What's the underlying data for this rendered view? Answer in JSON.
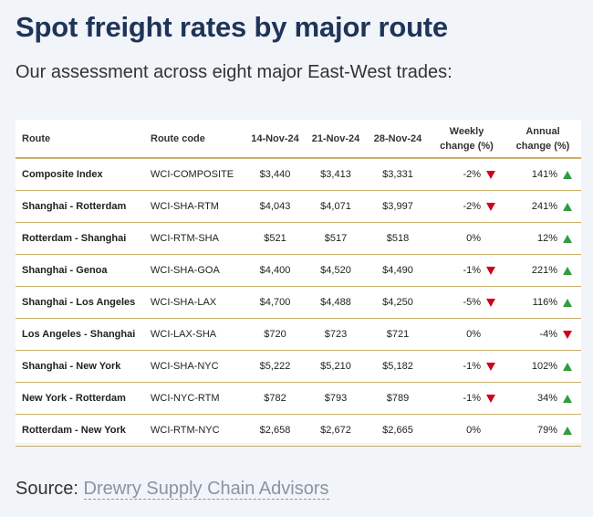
{
  "header": {
    "title": "Spot freight rates by major route",
    "subtitle": "Our assessment across eight major East-West trades:"
  },
  "table": {
    "columns": {
      "route": "Route",
      "code": "Route code",
      "d1": "14-Nov-24",
      "d2": "21-Nov-24",
      "d3": "28-Nov-24",
      "weekly_1": "Weekly",
      "weekly_2": "change (%)",
      "annual_1": "Annual",
      "annual_2": "change (%)"
    },
    "rows": [
      {
        "route": "Composite Index",
        "code": "WCI-COMPOSITE",
        "d1": "$3,440",
        "d2": "$3,413",
        "d3": "$3,331",
        "weekly": "-2%",
        "weekly_dir": "down",
        "annual": "141%",
        "annual_dir": "up"
      },
      {
        "route": "Shanghai - Rotterdam",
        "code": "WCI-SHA-RTM",
        "d1": "$4,043",
        "d2": "$4,071",
        "d3": "$3,997",
        "weekly": "-2%",
        "weekly_dir": "down",
        "annual": "241%",
        "annual_dir": "up"
      },
      {
        "route": "Rotterdam - Shanghai",
        "code": "WCI-RTM-SHA",
        "d1": "$521",
        "d2": "$517",
        "d3": "$518",
        "weekly": "0%",
        "weekly_dir": "none",
        "annual": "12%",
        "annual_dir": "up"
      },
      {
        "route": "Shanghai - Genoa",
        "code": "WCI-SHA-GOA",
        "d1": "$4,400",
        "d2": "$4,520",
        "d3": "$4,490",
        "weekly": "-1%",
        "weekly_dir": "down",
        "annual": "221%",
        "annual_dir": "up"
      },
      {
        "route": "Shanghai - Los Angeles",
        "code": "WCI-SHA-LAX",
        "d1": "$4,700",
        "d2": "$4,488",
        "d3": "$4,250",
        "weekly": "-5%",
        "weekly_dir": "down",
        "annual": "116%",
        "annual_dir": "up"
      },
      {
        "route": "Los Angeles - Shanghai",
        "code": "WCI-LAX-SHA",
        "d1": "$720",
        "d2": "$723",
        "d3": "$721",
        "weekly": "0%",
        "weekly_dir": "none",
        "annual": "-4%",
        "annual_dir": "down"
      },
      {
        "route": "Shanghai - New York",
        "code": "WCI-SHA-NYC",
        "d1": "$5,222",
        "d2": "$5,210",
        "d3": "$5,182",
        "weekly": "-1%",
        "weekly_dir": "down",
        "annual": "102%",
        "annual_dir": "up"
      },
      {
        "route": "New York - Rotterdam",
        "code": "WCI-NYC-RTM",
        "d1": "$782",
        "d2": "$793",
        "d3": "$789",
        "weekly": "-1%",
        "weekly_dir": "down",
        "annual": "34%",
        "annual_dir": "up"
      },
      {
        "route": "Rotterdam - New York",
        "code": "WCI-RTM-NYC",
        "d1": "$2,658",
        "d2": "$2,672",
        "d3": "$2,665",
        "weekly": "0%",
        "weekly_dir": "none",
        "annual": "79%",
        "annual_dir": "up"
      }
    ]
  },
  "footer": {
    "source_label": "Source:",
    "source_link": "Drewry Supply Chain Advisors"
  },
  "colors": {
    "title": "#1f3458",
    "rule": "#c9b06a",
    "up": "#2e9d3f",
    "down": "#d0021b"
  }
}
